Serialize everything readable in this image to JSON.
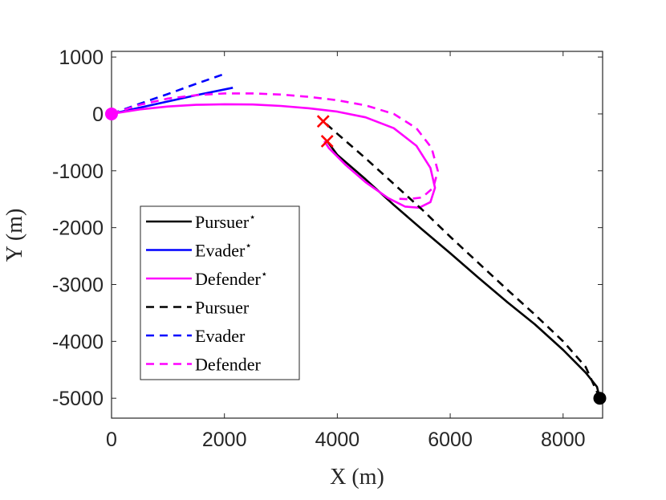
{
  "chart_data": {
    "type": "line",
    "xlabel": "X (m)",
    "ylabel": "Y (m)",
    "xlim": [
      0,
      8700
    ],
    "ylim": [
      -5350,
      1100
    ],
    "xticks": [
      0,
      2000,
      4000,
      6000,
      8000
    ],
    "yticks": [
      1000,
      0,
      -1000,
      -2000,
      -3000,
      -4000,
      -5000
    ],
    "xtick_labels": [
      "0",
      "2000",
      "4000",
      "6000",
      "8000"
    ],
    "ytick_labels": [
      "1000",
      "0",
      "-1000",
      "-2000",
      "-3000",
      "-4000",
      "-5000"
    ],
    "legend_position": "lower-left",
    "series": [
      {
        "name": "Pursuer⋆",
        "legend_label": "Pursuer",
        "star": true,
        "color": "#000000",
        "dash": "solid",
        "points": [
          [
            8650,
            -5000
          ],
          [
            8600,
            -4800
          ],
          [
            8400,
            -4550
          ],
          [
            8000,
            -4150
          ],
          [
            7500,
            -3700
          ],
          [
            7000,
            -3300
          ],
          [
            6500,
            -2880
          ],
          [
            6000,
            -2450
          ],
          [
            5500,
            -2030
          ],
          [
            5000,
            -1600
          ],
          [
            4500,
            -1150
          ],
          [
            4000,
            -720
          ],
          [
            3820,
            -480
          ]
        ]
      },
      {
        "name": "Evader⋆",
        "legend_label": "Evader",
        "star": true,
        "color": "#0000ff",
        "dash": "solid",
        "points": [
          [
            0,
            0
          ],
          [
            500,
            110
          ],
          [
            1000,
            220
          ],
          [
            1500,
            330
          ],
          [
            2150,
            460
          ]
        ]
      },
      {
        "name": "Defender⋆",
        "legend_label": "Defender",
        "star": true,
        "color": "#ff00ff",
        "dash": "solid",
        "points": [
          [
            0,
            0
          ],
          [
            500,
            80
          ],
          [
            1000,
            130
          ],
          [
            1500,
            160
          ],
          [
            2000,
            170
          ],
          [
            2500,
            165
          ],
          [
            3000,
            140
          ],
          [
            3500,
            100
          ],
          [
            4000,
            40
          ],
          [
            4500,
            -60
          ],
          [
            5000,
            -250
          ],
          [
            5400,
            -560
          ],
          [
            5650,
            -950
          ],
          [
            5730,
            -1300
          ],
          [
            5650,
            -1550
          ],
          [
            5450,
            -1650
          ],
          [
            5200,
            -1630
          ],
          [
            4900,
            -1480
          ],
          [
            4500,
            -1200
          ],
          [
            4150,
            -900
          ],
          [
            3850,
            -600
          ],
          [
            3770,
            -480
          ]
        ]
      },
      {
        "name": "Pursuer",
        "legend_label": "Pursuer",
        "star": false,
        "color": "#000000",
        "dash": "dashed",
        "points": [
          [
            8650,
            -5000
          ],
          [
            8400,
            -4450
          ],
          [
            8000,
            -4000
          ],
          [
            7500,
            -3530
          ],
          [
            7000,
            -3080
          ],
          [
            6500,
            -2620
          ],
          [
            6000,
            -2160
          ],
          [
            5500,
            -1680
          ],
          [
            5000,
            -1230
          ],
          [
            4500,
            -780
          ],
          [
            4000,
            -350
          ],
          [
            3750,
            -130
          ]
        ]
      },
      {
        "name": "Evader",
        "legend_label": "Evader",
        "star": false,
        "color": "#0000ff",
        "dash": "dashed",
        "points": [
          [
            0,
            0
          ],
          [
            500,
            180
          ],
          [
            1000,
            350
          ],
          [
            1500,
            530
          ],
          [
            2050,
            720
          ]
        ]
      },
      {
        "name": "Defender",
        "legend_label": "Defender",
        "star": false,
        "color": "#ff00ff",
        "dash": "dashed",
        "points": [
          [
            0,
            0
          ],
          [
            500,
            160
          ],
          [
            1000,
            270
          ],
          [
            1500,
            330
          ],
          [
            2000,
            360
          ],
          [
            2500,
            360
          ],
          [
            3000,
            340
          ],
          [
            3500,
            300
          ],
          [
            4000,
            240
          ],
          [
            4500,
            150
          ],
          [
            5000,
            0
          ],
          [
            5400,
            -250
          ],
          [
            5670,
            -600
          ],
          [
            5780,
            -1000
          ],
          [
            5700,
            -1300
          ],
          [
            5500,
            -1470
          ],
          [
            5250,
            -1500
          ],
          [
            5050,
            -1490
          ]
        ]
      }
    ],
    "markers": [
      {
        "name": "evader-defender-start",
        "x": 0,
        "y": 0,
        "shape": "circle",
        "color": "#ff00ff"
      },
      {
        "name": "pursuer-start",
        "x": 8650,
        "y": -5000,
        "shape": "circle",
        "color": "#000000"
      },
      {
        "name": "capture-point-optimal",
        "x": 3820,
        "y": -480,
        "shape": "x",
        "color": "#ff0000"
      },
      {
        "name": "capture-point-baseline",
        "x": 3750,
        "y": -130,
        "shape": "x",
        "color": "#ff0000"
      }
    ]
  }
}
